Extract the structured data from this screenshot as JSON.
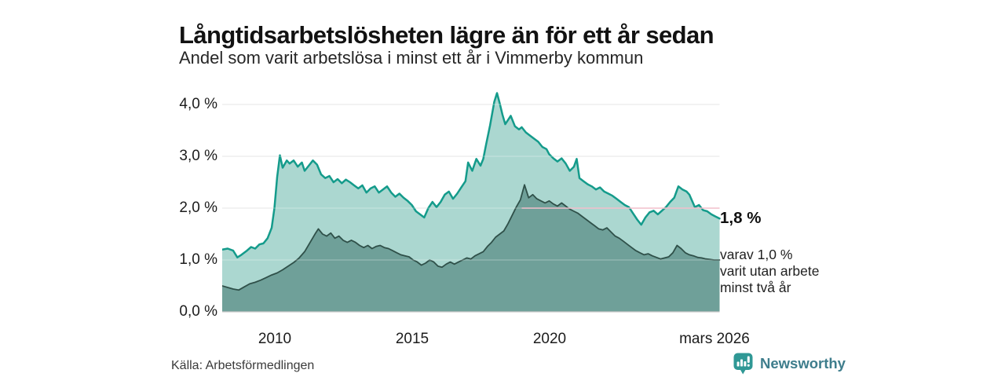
{
  "header": {
    "title": "Långtidsarbetslösheten lägre än för ett år sedan",
    "subtitle": "Andel som varit arbetslösa i minst ett år i Vimmerby kommun"
  },
  "annotations": {
    "latest_value": "1,8 %",
    "secondary_line1": "varav 1,0 %",
    "secondary_line2": "varit utan arbete",
    "secondary_line3": "minst två år"
  },
  "footer": {
    "source": "Källa: Arbetsförmedlingen",
    "brand": "Newsworthy"
  },
  "colors": {
    "series1_line": "#149b8b",
    "series1_fill": "#abd7d0",
    "series2_line": "#2f5049",
    "series2_fill": "#6fa099",
    "gridline": "#d9d9d9",
    "baseline": "#c6c6c6",
    "reference_pink": "#f2bfcc",
    "brand_teal": "#2f9895"
  },
  "chart_data": {
    "type": "area",
    "title": "Långtidsarbetslösheten lägre än för ett år sedan",
    "subtitle": "Andel som varit arbetslösa i minst ett år i Vimmerby kommun",
    "x_axis": {
      "range": [
        2008.1,
        2026.2
      ],
      "ticks": [
        "2010",
        "2015",
        "2020",
        "mars 2026"
      ],
      "tick_years": [
        2010,
        2015,
        2020,
        2026.0
      ]
    },
    "y_axis": {
      "range": [
        0,
        4.35
      ],
      "unit": "%",
      "ticks": [
        "0,0 %",
        "1,0 %",
        "2,0 %",
        "3,0 %",
        "4,0 %"
      ],
      "tick_values": [
        0,
        1,
        2,
        3,
        4
      ]
    },
    "grid": true,
    "legend_position": "none",
    "reference_line": {
      "value": 2.0,
      "from_year": 2019.0,
      "to_year": 2026.2
    },
    "series": [
      {
        "name": "Andel som varit arbetslösa i minst ett år",
        "latest_label": "1,8 %",
        "points": [
          [
            2008.1,
            1.2
          ],
          [
            2008.3,
            1.22
          ],
          [
            2008.5,
            1.18
          ],
          [
            2008.65,
            1.05
          ],
          [
            2008.8,
            1.1
          ],
          [
            2009.0,
            1.18
          ],
          [
            2009.15,
            1.25
          ],
          [
            2009.3,
            1.22
          ],
          [
            2009.45,
            1.3
          ],
          [
            2009.6,
            1.32
          ],
          [
            2009.75,
            1.42
          ],
          [
            2009.9,
            1.62
          ],
          [
            2010.0,
            2.0
          ],
          [
            2010.1,
            2.6
          ],
          [
            2010.2,
            3.02
          ],
          [
            2010.3,
            2.78
          ],
          [
            2010.45,
            2.92
          ],
          [
            2010.55,
            2.86
          ],
          [
            2010.7,
            2.92
          ],
          [
            2010.85,
            2.8
          ],
          [
            2011.0,
            2.88
          ],
          [
            2011.1,
            2.72
          ],
          [
            2011.25,
            2.82
          ],
          [
            2011.4,
            2.92
          ],
          [
            2011.55,
            2.84
          ],
          [
            2011.7,
            2.65
          ],
          [
            2011.85,
            2.58
          ],
          [
            2012.0,
            2.62
          ],
          [
            2012.15,
            2.5
          ],
          [
            2012.3,
            2.56
          ],
          [
            2012.45,
            2.48
          ],
          [
            2012.6,
            2.55
          ],
          [
            2012.75,
            2.5
          ],
          [
            2012.9,
            2.44
          ],
          [
            2013.05,
            2.38
          ],
          [
            2013.2,
            2.44
          ],
          [
            2013.35,
            2.3
          ],
          [
            2013.5,
            2.38
          ],
          [
            2013.65,
            2.42
          ],
          [
            2013.8,
            2.3
          ],
          [
            2013.95,
            2.36
          ],
          [
            2014.1,
            2.42
          ],
          [
            2014.25,
            2.3
          ],
          [
            2014.4,
            2.22
          ],
          [
            2014.55,
            2.28
          ],
          [
            2014.7,
            2.2
          ],
          [
            2014.85,
            2.14
          ],
          [
            2015.0,
            2.06
          ],
          [
            2015.15,
            1.94
          ],
          [
            2015.3,
            1.88
          ],
          [
            2015.45,
            1.82
          ],
          [
            2015.6,
            2.0
          ],
          [
            2015.75,
            2.12
          ],
          [
            2015.9,
            2.02
          ],
          [
            2016.05,
            2.12
          ],
          [
            2016.2,
            2.26
          ],
          [
            2016.35,
            2.32
          ],
          [
            2016.5,
            2.18
          ],
          [
            2016.65,
            2.28
          ],
          [
            2016.8,
            2.4
          ],
          [
            2016.95,
            2.52
          ],
          [
            2017.05,
            2.88
          ],
          [
            2017.2,
            2.72
          ],
          [
            2017.35,
            2.95
          ],
          [
            2017.5,
            2.82
          ],
          [
            2017.6,
            2.95
          ],
          [
            2017.7,
            3.22
          ],
          [
            2017.85,
            3.6
          ],
          [
            2018.0,
            4.05
          ],
          [
            2018.1,
            4.22
          ],
          [
            2018.2,
            4.02
          ],
          [
            2018.3,
            3.8
          ],
          [
            2018.4,
            3.62
          ],
          [
            2018.5,
            3.7
          ],
          [
            2018.6,
            3.78
          ],
          [
            2018.75,
            3.58
          ],
          [
            2018.9,
            3.52
          ],
          [
            2019.0,
            3.56
          ],
          [
            2019.15,
            3.46
          ],
          [
            2019.3,
            3.4
          ],
          [
            2019.45,
            3.34
          ],
          [
            2019.6,
            3.28
          ],
          [
            2019.75,
            3.18
          ],
          [
            2019.9,
            3.14
          ],
          [
            2020.0,
            3.04
          ],
          [
            2020.15,
            2.96
          ],
          [
            2020.3,
            2.9
          ],
          [
            2020.45,
            2.96
          ],
          [
            2020.6,
            2.86
          ],
          [
            2020.75,
            2.72
          ],
          [
            2020.9,
            2.8
          ],
          [
            2021.0,
            2.95
          ],
          [
            2021.1,
            2.58
          ],
          [
            2021.25,
            2.52
          ],
          [
            2021.4,
            2.46
          ],
          [
            2021.55,
            2.42
          ],
          [
            2021.7,
            2.36
          ],
          [
            2021.85,
            2.4
          ],
          [
            2022.0,
            2.32
          ],
          [
            2022.15,
            2.28
          ],
          [
            2022.3,
            2.24
          ],
          [
            2022.45,
            2.18
          ],
          [
            2022.6,
            2.12
          ],
          [
            2022.75,
            2.06
          ],
          [
            2022.9,
            2.02
          ],
          [
            2023.05,
            1.9
          ],
          [
            2023.2,
            1.78
          ],
          [
            2023.35,
            1.68
          ],
          [
            2023.5,
            1.82
          ],
          [
            2023.65,
            1.92
          ],
          [
            2023.8,
            1.95
          ],
          [
            2023.95,
            1.88
          ],
          [
            2024.1,
            1.95
          ],
          [
            2024.25,
            2.02
          ],
          [
            2024.4,
            2.12
          ],
          [
            2024.55,
            2.2
          ],
          [
            2024.7,
            2.42
          ],
          [
            2024.85,
            2.36
          ],
          [
            2025.0,
            2.32
          ],
          [
            2025.1,
            2.26
          ],
          [
            2025.2,
            2.14
          ],
          [
            2025.3,
            2.02
          ],
          [
            2025.45,
            2.06
          ],
          [
            2025.6,
            1.96
          ],
          [
            2025.75,
            1.94
          ],
          [
            2025.9,
            1.88
          ],
          [
            2026.05,
            1.84
          ],
          [
            2026.2,
            1.8
          ]
        ]
      },
      {
        "name": "varav utan arbete minst två år",
        "latest_label": "1,0 %",
        "points": [
          [
            2008.1,
            0.5
          ],
          [
            2008.3,
            0.47
          ],
          [
            2008.5,
            0.44
          ],
          [
            2008.7,
            0.42
          ],
          [
            2008.9,
            0.48
          ],
          [
            2009.1,
            0.54
          ],
          [
            2009.3,
            0.57
          ],
          [
            2009.5,
            0.61
          ],
          [
            2009.7,
            0.66
          ],
          [
            2009.9,
            0.71
          ],
          [
            2010.1,
            0.75
          ],
          [
            2010.3,
            0.81
          ],
          [
            2010.5,
            0.88
          ],
          [
            2010.7,
            0.95
          ],
          [
            2010.9,
            1.04
          ],
          [
            2011.1,
            1.16
          ],
          [
            2011.3,
            1.34
          ],
          [
            2011.5,
            1.52
          ],
          [
            2011.6,
            1.6
          ],
          [
            2011.75,
            1.5
          ],
          [
            2011.9,
            1.46
          ],
          [
            2012.05,
            1.52
          ],
          [
            2012.2,
            1.42
          ],
          [
            2012.35,
            1.46
          ],
          [
            2012.5,
            1.38
          ],
          [
            2012.65,
            1.34
          ],
          [
            2012.8,
            1.38
          ],
          [
            2012.95,
            1.34
          ],
          [
            2013.1,
            1.28
          ],
          [
            2013.25,
            1.24
          ],
          [
            2013.4,
            1.28
          ],
          [
            2013.55,
            1.22
          ],
          [
            2013.7,
            1.26
          ],
          [
            2013.85,
            1.28
          ],
          [
            2014.0,
            1.24
          ],
          [
            2014.15,
            1.22
          ],
          [
            2014.3,
            1.18
          ],
          [
            2014.45,
            1.14
          ],
          [
            2014.6,
            1.1
          ],
          [
            2014.75,
            1.08
          ],
          [
            2014.9,
            1.06
          ],
          [
            2015.05,
            1.0
          ],
          [
            2015.2,
            0.96
          ],
          [
            2015.35,
            0.9
          ],
          [
            2015.5,
            0.94
          ],
          [
            2015.65,
            1.0
          ],
          [
            2015.8,
            0.96
          ],
          [
            2015.95,
            0.88
          ],
          [
            2016.1,
            0.86
          ],
          [
            2016.25,
            0.92
          ],
          [
            2016.4,
            0.96
          ],
          [
            2016.55,
            0.92
          ],
          [
            2016.7,
            0.96
          ],
          [
            2016.85,
            1.0
          ],
          [
            2017.0,
            1.04
          ],
          [
            2017.15,
            1.02
          ],
          [
            2017.3,
            1.08
          ],
          [
            2017.45,
            1.12
          ],
          [
            2017.6,
            1.16
          ],
          [
            2017.75,
            1.26
          ],
          [
            2017.9,
            1.34
          ],
          [
            2018.05,
            1.44
          ],
          [
            2018.2,
            1.5
          ],
          [
            2018.35,
            1.56
          ],
          [
            2018.5,
            1.7
          ],
          [
            2018.65,
            1.86
          ],
          [
            2018.8,
            2.02
          ],
          [
            2018.95,
            2.16
          ],
          [
            2019.1,
            2.45
          ],
          [
            2019.25,
            2.2
          ],
          [
            2019.4,
            2.26
          ],
          [
            2019.55,
            2.18
          ],
          [
            2019.7,
            2.14
          ],
          [
            2019.85,
            2.1
          ],
          [
            2020.0,
            2.14
          ],
          [
            2020.15,
            2.08
          ],
          [
            2020.3,
            2.04
          ],
          [
            2020.45,
            2.1
          ],
          [
            2020.6,
            2.04
          ],
          [
            2020.75,
            1.98
          ],
          [
            2020.9,
            1.94
          ],
          [
            2021.05,
            1.9
          ],
          [
            2021.2,
            1.84
          ],
          [
            2021.35,
            1.78
          ],
          [
            2021.5,
            1.72
          ],
          [
            2021.65,
            1.66
          ],
          [
            2021.8,
            1.6
          ],
          [
            2021.95,
            1.58
          ],
          [
            2022.1,
            1.62
          ],
          [
            2022.25,
            1.54
          ],
          [
            2022.4,
            1.46
          ],
          [
            2022.55,
            1.42
          ],
          [
            2022.7,
            1.36
          ],
          [
            2022.85,
            1.3
          ],
          [
            2023.0,
            1.24
          ],
          [
            2023.15,
            1.18
          ],
          [
            2023.3,
            1.14
          ],
          [
            2023.45,
            1.1
          ],
          [
            2023.6,
            1.12
          ],
          [
            2023.75,
            1.08
          ],
          [
            2023.9,
            1.05
          ],
          [
            2024.05,
            1.02
          ],
          [
            2024.2,
            1.04
          ],
          [
            2024.35,
            1.06
          ],
          [
            2024.5,
            1.14
          ],
          [
            2024.65,
            1.28
          ],
          [
            2024.8,
            1.22
          ],
          [
            2024.95,
            1.14
          ],
          [
            2025.1,
            1.1
          ],
          [
            2025.25,
            1.08
          ],
          [
            2025.4,
            1.05
          ],
          [
            2025.55,
            1.04
          ],
          [
            2025.7,
            1.02
          ],
          [
            2025.85,
            1.01
          ],
          [
            2026.0,
            1.0
          ],
          [
            2026.2,
            1.0
          ]
        ]
      }
    ]
  }
}
